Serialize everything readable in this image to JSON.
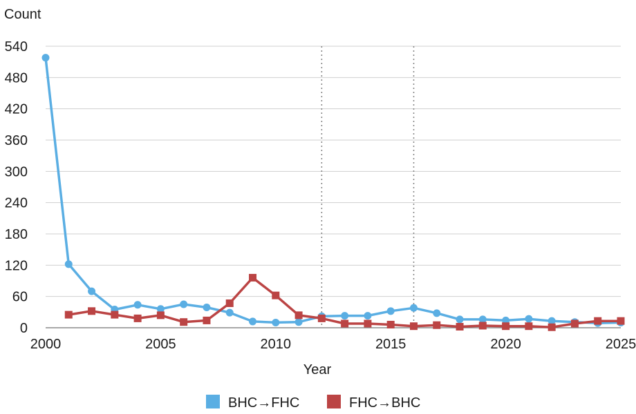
{
  "chart_data": {
    "type": "line",
    "title": "",
    "ylabel": "Count",
    "xlabel": "Year",
    "xlim": [
      2000,
      2025
    ],
    "ylim": [
      0,
      540
    ],
    "xticks": [
      2000,
      2005,
      2010,
      2015,
      2020,
      2025
    ],
    "yticks": [
      0,
      60,
      120,
      180,
      240,
      300,
      360,
      420,
      480,
      540
    ],
    "grid": "horizontal",
    "vlines": [
      2012,
      2016
    ],
    "legend": "bottom-center",
    "series": [
      {
        "name": "BHC→FHC",
        "color": "#5aaee3",
        "marker": "circle",
        "x": [
          2000,
          2001,
          2002,
          2003,
          2004,
          2005,
          2006,
          2007,
          2008,
          2009,
          2010,
          2011,
          2012,
          2013,
          2014,
          2015,
          2016,
          2017,
          2018,
          2019,
          2020,
          2021,
          2022,
          2023,
          2024,
          2025
        ],
        "values": [
          518,
          122,
          70,
          35,
          44,
          36,
          45,
          39,
          29,
          12,
          10,
          11,
          22,
          23,
          23,
          32,
          38,
          28,
          16,
          16,
          14,
          17,
          13,
          11,
          9,
          10
        ]
      },
      {
        "name": "FHC→BHC",
        "color": "#bb4444",
        "marker": "square",
        "x": [
          2001,
          2002,
          2003,
          2004,
          2005,
          2006,
          2007,
          2008,
          2009,
          2010,
          2011,
          2012,
          2013,
          2014,
          2015,
          2016,
          2017,
          2018,
          2019,
          2020,
          2021,
          2022,
          2023,
          2024,
          2025
        ],
        "values": [
          25,
          32,
          25,
          18,
          24,
          11,
          14,
          47,
          96,
          62,
          24,
          18,
          8,
          8,
          6,
          3,
          5,
          2,
          4,
          3,
          3,
          1,
          8,
          13,
          13
        ]
      }
    ]
  }
}
